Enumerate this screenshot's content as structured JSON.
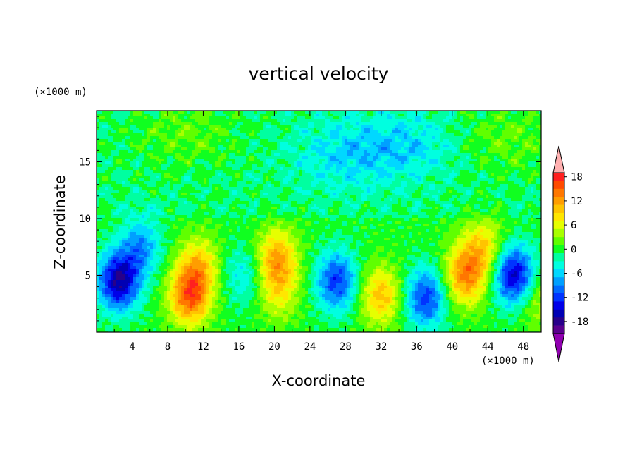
{
  "chart_data": {
    "type": "heatmap",
    "title": "vertical velocity",
    "xlabel": "X-coordinate",
    "ylabel": "Z-coordinate",
    "x_unit": "(×1000 m)",
    "y_unit": "(×1000 m)",
    "xlim": [
      0,
      50
    ],
    "ylim": [
      0,
      19.5
    ],
    "x_ticks": [
      "4",
      "8",
      "12",
      "16",
      "20",
      "24",
      "28",
      "32",
      "36",
      "40",
      "44",
      "48"
    ],
    "y_ticks": [
      "5",
      "10",
      "15"
    ],
    "colorbar": {
      "min": -21,
      "max": 21,
      "step": 2,
      "tick_labels": [
        "18",
        "12",
        "6",
        "0",
        "-6",
        "-12",
        "-18"
      ],
      "colors": [
        "#ffb0b0",
        "#ff2020",
        "#ff4a00",
        "#ff7700",
        "#ff9d00",
        "#ffc400",
        "#ffe600",
        "#e6ff00",
        "#a8ff00",
        "#60ff00",
        "#10ff20",
        "#00ffa0",
        "#00ffe0",
        "#00d8ff",
        "#00a0ff",
        "#006aff",
        "#0034ff",
        "#0000e8",
        "#0000b4",
        "#28008a",
        "#5a008e",
        "#9000b0"
      ]
    },
    "features": [
      {
        "x": 2.5,
        "z": 4.5,
        "w": -17
      },
      {
        "x": 5.0,
        "z": 7.5,
        "w": -8
      },
      {
        "x": 10.5,
        "z": 3.2,
        "w": 15
      },
      {
        "x": 11.5,
        "z": 6.0,
        "w": 8
      },
      {
        "x": 16.5,
        "z": 5.0,
        "w": -5
      },
      {
        "x": 20.3,
        "z": 6.5,
        "w": 11
      },
      {
        "x": 20.5,
        "z": 3.5,
        "w": 6
      },
      {
        "x": 27.0,
        "z": 4.5,
        "w": -12
      },
      {
        "x": 32.0,
        "z": 3.2,
        "w": 10
      },
      {
        "x": 37.0,
        "z": 3.0,
        "w": -12
      },
      {
        "x": 41.5,
        "z": 5.0,
        "w": 13
      },
      {
        "x": 43.5,
        "z": 7.5,
        "w": 8
      },
      {
        "x": 47.0,
        "z": 5.0,
        "w": -16
      },
      {
        "x": 49.5,
        "z": 3.0,
        "w": 5
      },
      {
        "x": 10.0,
        "z": 17.5,
        "w": 3
      },
      {
        "x": 46.0,
        "z": 17.0,
        "w": 3
      },
      {
        "x": 28.0,
        "z": 15.5,
        "w": -4
      },
      {
        "x": 35.0,
        "z": 16.5,
        "w": -4
      }
    ]
  }
}
